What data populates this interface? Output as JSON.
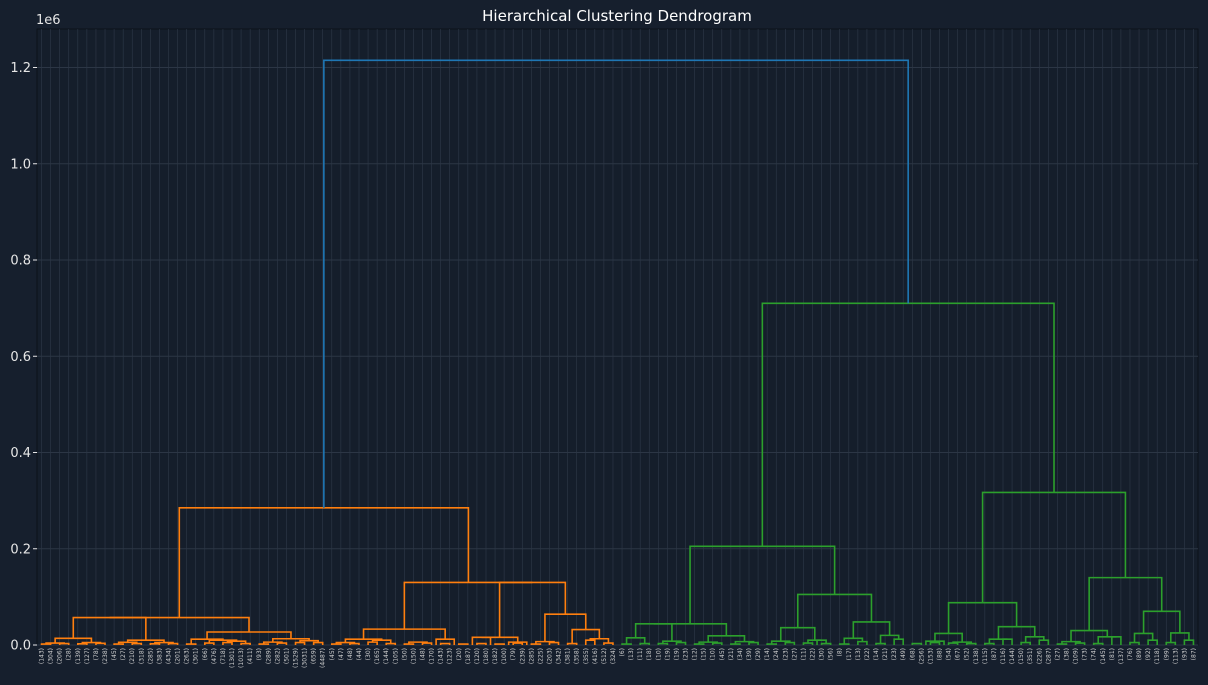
{
  "chart_data": {
    "type": "dendrogram",
    "title": "Hierarchical Clustering Dendrogram",
    "xlabel": "",
    "ylabel": "",
    "y_offset_label": "1e6",
    "ylim": [
      0,
      1280000
    ],
    "yticks": [
      "0.0",
      "0.2",
      "0.4",
      "0.6",
      "0.8",
      "1.0",
      "1.2"
    ],
    "grid": true,
    "colors": {
      "c0": "#ff7f0e",
      "c1": "#2ca02c",
      "root": "#1f77b4"
    },
    "leaves": [
      "(143)",
      "(304)",
      "(206)",
      "(28)",
      "(139)",
      "(127)",
      "(78)",
      "(238)",
      "(45)",
      "(27)",
      "(210)",
      "(318)",
      "(285)",
      "(383)",
      "(434)",
      "(201)",
      "(263)",
      "(301)",
      "(66)",
      "(476)",
      "(718)",
      "(1301)",
      "(1013)",
      "(411)",
      "(93)",
      "(289)",
      "(282)",
      "(501)",
      "(1529)",
      "(3031)",
      "(659)",
      "(4487)",
      "(45)",
      "(47)",
      "(48)",
      "(44)",
      "(30)",
      "(165)",
      "(144)",
      "(105)",
      "(50)",
      "(150)",
      "(48)",
      "(170)",
      "(143)",
      "(123)",
      "(20)",
      "(187)",
      "(120)",
      "(180)",
      "(182)",
      "(100)",
      "(79)",
      "(239)",
      "(285)",
      "(225)",
      "(203)",
      "(342)",
      "(381)",
      "(358)",
      "(355)",
      "(416)",
      "(512)",
      "(324)",
      "(6)",
      "(13)",
      "(11)",
      "(18)",
      "(10)",
      "(19)",
      "(19)",
      "(23)",
      "(12)",
      "(15)",
      "(10)",
      "(45)",
      "(21)",
      "(34)",
      "(39)",
      "(29)",
      "(14)",
      "(24)",
      "(23)",
      "(27)",
      "(11)",
      "(22)",
      "(30)",
      "(56)",
      "(8)",
      "(17)",
      "(13)",
      "(22)",
      "(14)",
      "(21)",
      "(23)",
      "(49)",
      "(68)",
      "(256)",
      "(153)",
      "(88)",
      "(54)",
      "(67)",
      "(52)",
      "(138)",
      "(115)",
      "(87)",
      "(116)",
      "(144)",
      "(150)",
      "(351)",
      "(226)",
      "(287)",
      "(27)",
      "(38)",
      "(109)",
      "(73)",
      "(74)",
      "(145)",
      "(81)",
      "(137)",
      "(76)",
      "(89)",
      "(92)",
      "(118)",
      "(99)",
      "(113)",
      "(93)",
      "(87)"
    ],
    "merges": [
      {
        "x": [
          0.5,
          1.5
        ],
        "h": 2000,
        "c": "c0"
      },
      {
        "x": [
          2.5,
          3.5
        ],
        "h": 3000,
        "c": "c0"
      },
      {
        "x": [
          1,
          3
        ],
        "h": 4000,
        "c": "c0"
      },
      {
        "x": [
          4.5,
          5.5
        ],
        "h": 2500,
        "c": "c0"
      },
      {
        "x": [
          6.5,
          7.5
        ],
        "h": 3500,
        "c": "c0"
      },
      {
        "x": [
          5,
          7
        ],
        "h": 5000,
        "c": "c0"
      },
      {
        "x": [
          2,
          6
        ],
        "h": 14000,
        "c": "c0"
      },
      {
        "x": [
          8.5,
          9.5
        ],
        "h": 2000,
        "c": "c0"
      },
      {
        "x": [
          10.5,
          11.5
        ],
        "h": 3000,
        "c": "c0"
      },
      {
        "x": [
          9,
          11
        ],
        "h": 5500,
        "c": "c0"
      },
      {
        "x": [
          12.5,
          13.5
        ],
        "h": 2500,
        "c": "c0"
      },
      {
        "x": [
          14.5,
          15.5
        ],
        "h": 3000,
        "c": "c0"
      },
      {
        "x": [
          13,
          15
        ],
        "h": 5000,
        "c": "c0"
      },
      {
        "x": [
          10,
          14
        ],
        "h": 10000,
        "c": "c0"
      },
      {
        "x": [
          4,
          12
        ],
        "h": 57000,
        "c": "c0"
      },
      {
        "x": [
          16.5,
          17.5
        ],
        "h": 2000,
        "c": "c0"
      },
      {
        "x": [
          18.5,
          19.5
        ],
        "h": 4000,
        "c": "c0"
      },
      {
        "x": [
          20.5,
          21.5
        ],
        "h": 5000,
        "c": "c0"
      },
      {
        "x": [
          22.5,
          23.5
        ],
        "h": 3000,
        "c": "c0"
      },
      {
        "x": [
          21,
          23
        ],
        "h": 8000,
        "c": "c0"
      },
      {
        "x": [
          19,
          22
        ],
        "h": 10000,
        "c": "c0"
      },
      {
        "x": [
          17,
          20.5
        ],
        "h": 12000,
        "c": "c0"
      },
      {
        "x": [
          24.5,
          25.5
        ],
        "h": 2000,
        "c": "c0"
      },
      {
        "x": [
          26.5,
          27.5
        ],
        "h": 4000,
        "c": "c0"
      },
      {
        "x": [
          25,
          27
        ],
        "h": 6000,
        "c": "c0"
      },
      {
        "x": [
          28.5,
          29.5
        ],
        "h": 5000,
        "c": "c0"
      },
      {
        "x": [
          30.5,
          31.5
        ],
        "h": 5000,
        "c": "c0"
      },
      {
        "x": [
          29,
          31
        ],
        "h": 9000,
        "c": "c0"
      },
      {
        "x": [
          26,
          30
        ],
        "h": 13000,
        "c": "c0"
      },
      {
        "x": [
          18.75,
          28
        ],
        "h": 27000,
        "c": "c0"
      },
      {
        "x": [
          8,
          23.375
        ],
        "h": 57000,
        "c": "c0"
      },
      {
        "x": [
          32.5,
          33.5
        ],
        "h": 2000,
        "c": "c0"
      },
      {
        "x": [
          34.5,
          35.5
        ],
        "h": 3000,
        "c": "c0"
      },
      {
        "x": [
          33,
          35
        ],
        "h": 5000,
        "c": "c0"
      },
      {
        "x": [
          36.5,
          37.5
        ],
        "h": 6000,
        "c": "c0"
      },
      {
        "x": [
          38.5,
          39.5
        ],
        "h": 3000,
        "c": "c0"
      },
      {
        "x": [
          37,
          39
        ],
        "h": 10000,
        "c": "c0"
      },
      {
        "x": [
          34,
          38
        ],
        "h": 12000,
        "c": "c0"
      },
      {
        "x": [
          40.5,
          41.5
        ],
        "h": 2000,
        "c": "c0"
      },
      {
        "x": [
          42.5,
          43.5
        ],
        "h": 4000,
        "c": "c0"
      },
      {
        "x": [
          41,
          43
        ],
        "h": 6000,
        "c": "c0"
      },
      {
        "x": [
          44.5,
          45.5
        ],
        "h": 3000,
        "c": "c0"
      },
      {
        "x": [
          44,
          46
        ],
        "h": 12000,
        "c": "c0"
      },
      {
        "x": [
          36,
          45
        ],
        "h": 33000,
        "c": "c0"
      },
      {
        "x": [
          46.5,
          47.5
        ],
        "h": 2000,
        "c": "c0"
      },
      {
        "x": [
          48.5,
          49.5
        ],
        "h": 3000,
        "c": "c0"
      },
      {
        "x": [
          48,
          50
        ],
        "h": 16000,
        "c": "c0"
      },
      {
        "x": [
          50.5,
          51.5
        ],
        "h": 2000,
        "c": "c0"
      },
      {
        "x": [
          52.5,
          53.5
        ],
        "h": 4000,
        "c": "c0"
      },
      {
        "x": [
          52,
          54
        ],
        "h": 6000,
        "c": "c0"
      },
      {
        "x": [
          49,
          53
        ],
        "h": 16000,
        "c": "c0"
      },
      {
        "x": [
          54.5,
          55.5
        ],
        "h": 2000,
        "c": "c0"
      },
      {
        "x": [
          56.5,
          57.5
        ],
        "h": 5000,
        "c": "c0"
      },
      {
        "x": [
          55,
          57
        ],
        "h": 7000,
        "c": "c0"
      },
      {
        "x": [
          58.5,
          59.5
        ],
        "h": 3000,
        "c": "c0"
      },
      {
        "x": [
          60.5,
          61.5
        ],
        "h": 10000,
        "c": "c0"
      },
      {
        "x": [
          62.5,
          63.5
        ],
        "h": 4000,
        "c": "c0"
      },
      {
        "x": [
          61,
          63
        ],
        "h": 13000,
        "c": "c0"
      },
      {
        "x": [
          59,
          62
        ],
        "h": 32000,
        "c": "c0"
      },
      {
        "x": [
          56,
          60.5
        ],
        "h": 64000,
        "c": "c0"
      },
      {
        "x": [
          51,
          58.25
        ],
        "h": 130000,
        "c": "c0"
      },
      {
        "x": [
          40.5,
          54.625
        ],
        "h": 130000,
        "c": "c0"
      },
      {
        "x": [
          15.6875,
          47.5625
        ],
        "h": 285000,
        "c": "c0"
      },
      {
        "x": [
          64.5,
          65.5
        ],
        "h": 2000,
        "c": "c1"
      },
      {
        "x": [
          66.5,
          67.5
        ],
        "h": 3000,
        "c": "c1"
      },
      {
        "x": [
          65,
          67
        ],
        "h": 15000,
        "c": "c1"
      },
      {
        "x": [
          68.5,
          69.5
        ],
        "h": 3000,
        "c": "c1"
      },
      {
        "x": [
          70.5,
          71.5
        ],
        "h": 5000,
        "c": "c1"
      },
      {
        "x": [
          69,
          71
        ],
        "h": 8000,
        "c": "c1"
      },
      {
        "x": [
          66,
          70
        ],
        "h": 44000,
        "c": "c1"
      },
      {
        "x": [
          72.5,
          73.5
        ],
        "h": 2000,
        "c": "c1"
      },
      {
        "x": [
          74.5,
          75.5
        ],
        "h": 4000,
        "c": "c1"
      },
      {
        "x": [
          73,
          75
        ],
        "h": 6000,
        "c": "c1"
      },
      {
        "x": [
          76.5,
          77.5
        ],
        "h": 2000,
        "c": "c1"
      },
      {
        "x": [
          78.5,
          79.5
        ],
        "h": 5000,
        "c": "c1"
      },
      {
        "x": [
          77,
          79
        ],
        "h": 7000,
        "c": "c1"
      },
      {
        "x": [
          74,
          78
        ],
        "h": 19000,
        "c": "c1"
      },
      {
        "x": [
          68,
          76
        ],
        "h": 44000,
        "c": "c1"
      },
      {
        "x": [
          80.5,
          81.5
        ],
        "h": 2000,
        "c": "c1"
      },
      {
        "x": [
          82.5,
          83.5
        ],
        "h": 5000,
        "c": "c1"
      },
      {
        "x": [
          81,
          83
        ],
        "h": 8000,
        "c": "c1"
      },
      {
        "x": [
          84.5,
          85.5
        ],
        "h": 4000,
        "c": "c1"
      },
      {
        "x": [
          86.5,
          87.5
        ],
        "h": 3000,
        "c": "c1"
      },
      {
        "x": [
          86,
          87
        ],
        "h": 10000,
        "c": "c1"
      },
      {
        "x": [
          85,
          86.5
        ],
        "h": 10000,
        "c": "c1"
      },
      {
        "x": [
          82,
          85.75
        ],
        "h": 36000,
        "c": "c1"
      },
      {
        "x": [
          88.5,
          89.5
        ],
        "h": 2000,
        "c": "c1"
      },
      {
        "x": [
          90.5,
          91.5
        ],
        "h": 7000,
        "c": "c1"
      },
      {
        "x": [
          89,
          91
        ],
        "h": 14000,
        "c": "c1"
      },
      {
        "x": [
          92.5,
          93.5
        ],
        "h": 3000,
        "c": "c1"
      },
      {
        "x": [
          94.5,
          95.5
        ],
        "h": 12000,
        "c": "c1"
      },
      {
        "x": [
          93,
          95
        ],
        "h": 20000,
        "c": "c1"
      },
      {
        "x": [
          90,
          94
        ],
        "h": 48000,
        "c": "c1"
      },
      {
        "x": [
          83.875,
          92
        ],
        "h": 105000,
        "c": "c1"
      },
      {
        "x": [
          72,
          87.9375
        ],
        "h": 205000,
        "c": "c1"
      },
      {
        "x": [
          96.5,
          97.5
        ],
        "h": 3000,
        "c": "c1"
      },
      {
        "x": [
          98.5,
          99.5
        ],
        "h": 5000,
        "c": "c1"
      },
      {
        "x": [
          98,
          100
        ],
        "h": 8000,
        "c": "c1"
      },
      {
        "x": [
          100.5,
          101.5
        ],
        "h": 4000,
        "c": "c1"
      },
      {
        "x": [
          102.5,
          103.5
        ],
        "h": 3000,
        "c": "c1"
      },
      {
        "x": [
          101,
          103
        ],
        "h": 6000,
        "c": "c1"
      },
      {
        "x": [
          99,
          102
        ],
        "h": 24000,
        "c": "c1"
      },
      {
        "x": [
          104.5,
          105.5
        ],
        "h": 3000,
        "c": "c1"
      },
      {
        "x": [
          106.5,
          107.5
        ],
        "h": 12000,
        "c": "c1"
      },
      {
        "x": [
          105,
          107
        ],
        "h": 12000,
        "c": "c1"
      },
      {
        "x": [
          108.5,
          109.5
        ],
        "h": 5000,
        "c": "c1"
      },
      {
        "x": [
          110.5,
          111.5
        ],
        "h": 10000,
        "c": "c1"
      },
      {
        "x": [
          109,
          111
        ],
        "h": 17000,
        "c": "c1"
      },
      {
        "x": [
          106,
          110
        ],
        "h": 38000,
        "c": "c1"
      },
      {
        "x": [
          100.5,
          108
        ],
        "h": 88000,
        "c": "c1"
      },
      {
        "x": [
          112.5,
          113.5
        ],
        "h": 2000,
        "c": "c1"
      },
      {
        "x": [
          114.5,
          115.5
        ],
        "h": 4000,
        "c": "c1"
      },
      {
        "x": [
          113,
          115
        ],
        "h": 7000,
        "c": "c1"
      },
      {
        "x": [
          116.5,
          117.5
        ],
        "h": 3000,
        "c": "c1"
      },
      {
        "x": [
          118.5,
          119.5
        ],
        "h": 17000,
        "c": "c1"
      },
      {
        "x": [
          117,
          119
        ],
        "h": 17000,
        "c": "c1"
      },
      {
        "x": [
          114,
          118
        ],
        "h": 30000,
        "c": "c1"
      },
      {
        "x": [
          120.5,
          121.5
        ],
        "h": 5000,
        "c": "c1"
      },
      {
        "x": [
          122.5,
          123.5
        ],
        "h": 10000,
        "c": "c1"
      },
      {
        "x": [
          121,
          123
        ],
        "h": 24000,
        "c": "c1"
      },
      {
        "x": [
          124.5,
          125.5
        ],
        "h": 5000,
        "c": "c1"
      },
      {
        "x": [
          126.5,
          127.5
        ],
        "h": 10000,
        "c": "c1"
      },
      {
        "x": [
          125,
          127
        ],
        "h": 25000,
        "c": "c1"
      },
      {
        "x": [
          122,
          126
        ],
        "h": 70000,
        "c": "c1"
      },
      {
        "x": [
          116,
          124
        ],
        "h": 140000,
        "c": "c1"
      },
      {
        "x": [
          104.25,
          120
        ],
        "h": 317000,
        "c": "c1"
      },
      {
        "x": [
          79.96875,
          112.125
        ],
        "h": 710000,
        "c": "c1"
      },
      {
        "x": [
          31.625,
          96.046875
        ],
        "h": 1215000,
        "c": "root"
      }
    ]
  }
}
